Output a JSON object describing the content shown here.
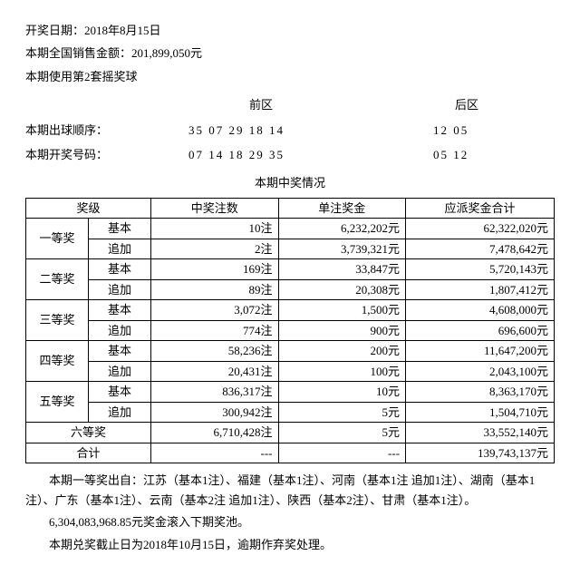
{
  "header": {
    "date_label": "开奖日期：",
    "date_value": "2018年8月15日",
    "sales_label": "本期全国销售金额：",
    "sales_value": "201,899,050元",
    "ballset_label": "本期使用第2套摇奖球"
  },
  "zones": {
    "front_label": "前区",
    "back_label": "后区",
    "draw_order_label": "本期出球顺序：",
    "draw_order_front": "35 07 29 18 14",
    "draw_order_back": "12 05",
    "result_label": "本期开奖号码：",
    "result_front": "07 14 18 29 35",
    "result_back": "05 12"
  },
  "section_title": "本期中奖情况",
  "table": {
    "columns": {
      "c1": "奖级",
      "c2": "中奖注数",
      "c3": "单注奖金",
      "c4": "应派奖金合计"
    },
    "rows": [
      {
        "name": "一等奖",
        "sub": "基本",
        "cnt": "10注",
        "unit": "6,232,202元",
        "total": "62,322,020元"
      },
      {
        "name": "",
        "sub": "追加",
        "cnt": "2注",
        "unit": "3,739,321元",
        "total": "7,478,642元"
      },
      {
        "name": "二等奖",
        "sub": "基本",
        "cnt": "169注",
        "unit": "33,847元",
        "total": "5,720,143元"
      },
      {
        "name": "",
        "sub": "追加",
        "cnt": "89注",
        "unit": "20,308元",
        "total": "1,807,412元"
      },
      {
        "name": "三等奖",
        "sub": "基本",
        "cnt": "3,072注",
        "unit": "1,500元",
        "total": "4,608,000元"
      },
      {
        "name": "",
        "sub": "追加",
        "cnt": "774注",
        "unit": "900元",
        "total": "696,600元"
      },
      {
        "name": "四等奖",
        "sub": "基本",
        "cnt": "58,236注",
        "unit": "200元",
        "total": "11,647,200元"
      },
      {
        "name": "",
        "sub": "追加",
        "cnt": "20,431注",
        "unit": "100元",
        "total": "2,043,100元"
      },
      {
        "name": "五等奖",
        "sub": "基本",
        "cnt": "836,317注",
        "unit": "10元",
        "total": "8,363,170元"
      },
      {
        "name": "",
        "sub": "追加",
        "cnt": "300,942注",
        "unit": "5元",
        "total": "1,504,710元"
      }
    ],
    "sixth": {
      "name": "六等奖",
      "cnt": "6,710,428注",
      "unit": "5元",
      "total": "33,552,140元"
    },
    "total": {
      "name": "合计",
      "cnt": "---",
      "unit": "---",
      "total": "139,743,137元"
    }
  },
  "footer": {
    "p1": "本期一等奖出自：江苏（基本1注）、福建（基本1注）、河南（基本1注 追加1注）、湖南（基本1注）、广东（基本1注）、云南（基本2注 追加1注）、陕西（基本2注）、甘肃（基本1注）。",
    "p2": "6,304,083,968.85元奖金滚入下期奖池。",
    "p3": "本期兑奖截止日为2018年10月15日，逾期作弃奖处理。"
  }
}
